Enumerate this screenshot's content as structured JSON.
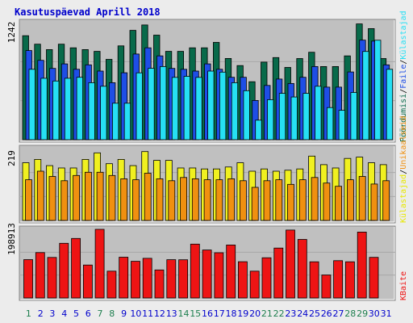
{
  "title": "Kasutuspäevad Aprill 2018",
  "colors": {
    "background": "#ececec",
    "panel": "#c0c0c0",
    "grid": "#a8a8a8",
    "title": "#0000cc",
    "page_views_bar": "#086a4a",
    "files_bar": "#1e4ee6",
    "visits_bar": "#26e0f4",
    "hits_bar": "#f0f020",
    "unique_bar": "#f09010",
    "kbytes_bar": "#ee1414",
    "weekend_label": "#1e7f4f",
    "weekday_label": "#0000cc"
  },
  "chart_data": [
    {
      "type": "bar",
      "name": "top",
      "ymax_label": "1242",
      "ylim": [
        0,
        1242
      ],
      "series": [
        {
          "name": "Pöördumisi",
          "color": "#086a4a",
          "values": [
            1103,
            1013,
            956,
            1013,
            975,
            956,
            937,
            852,
            995,
            1160,
            1217,
            1109,
            937,
            937,
            975,
            975,
            1032,
            862,
            786,
            615,
            823,
            871,
            767,
            861,
            928,
            776,
            776,
            889,
            1228,
            1179,
            861
          ]
        },
        {
          "name": "Faile",
          "color": "#1e4ee6",
          "values": [
            946,
            842,
            756,
            804,
            747,
            794,
            728,
            605,
            710,
            909,
            975,
            889,
            756,
            747,
            728,
            804,
            747,
            662,
            662,
            416,
            576,
            643,
            596,
            662,
            776,
            558,
            558,
            719,
            1056,
            1046,
            794
          ]
        },
        {
          "name": "Külastajad",
          "color": "#26e0f4",
          "values": [
            747,
            652,
            623,
            652,
            662,
            605,
            567,
            387,
            387,
            709,
            757,
            776,
            661,
            672,
            661,
            728,
            717,
            605,
            520,
            207,
            425,
            492,
            453,
            492,
            567,
            341,
            312,
            501,
            936,
            1055,
            747
          ]
        }
      ]
    },
    {
      "type": "bar",
      "name": "middle",
      "ymax_label": "219",
      "ylim": [
        0,
        219
      ],
      "series": [
        {
          "name": "Külastajad",
          "color": "#f0f020",
          "values": [
            176,
            186,
            167,
            160,
            160,
            186,
            206,
            173,
            186,
            167,
            210,
            183,
            183,
            160,
            160,
            157,
            157,
            163,
            176,
            150,
            157,
            150,
            153,
            157,
            196,
            170,
            160,
            189,
            193,
            176,
            170
          ]
        },
        {
          "name": "Unikaalseid",
          "color": "#f09010",
          "values": [
            124,
            150,
            134,
            121,
            137,
            147,
            147,
            137,
            127,
            124,
            144,
            127,
            121,
            131,
            127,
            124,
            124,
            127,
            121,
            101,
            121,
            124,
            110,
            124,
            131,
            114,
            104,
            124,
            134,
            111,
            121
          ]
        }
      ]
    },
    {
      "type": "bar",
      "name": "bottom",
      "ymax_label": "198913",
      "ylim": [
        0,
        198913
      ],
      "series": [
        {
          "name": "KBaite",
          "color": "#ee1414",
          "values": [
            111230,
            131630,
            117430,
            158340,
            172450,
            95400,
            198900,
            77580,
            118150,
            106220,
            114970,
            81240,
            110880,
            110750,
            156030,
            138910,
            131140,
            153480,
            105040,
            77580,
            116500,
            144660,
            196910,
            169550,
            104740,
            66580,
            108180,
            104740,
            190870,
            117800,
            0
          ]
        }
      ]
    }
  ],
  "legend": {
    "top": [
      {
        "text": "Pöördumisi",
        "color": "#086a4a"
      },
      {
        "text": "Faile",
        "color": "#1e4ee6"
      },
      {
        "text": "Külastajad",
        "color": "#26e0f4"
      }
    ],
    "middle": [
      {
        "text": "Külastajad",
        "color": "#e8e800"
      },
      {
        "text": "Unikaalseid",
        "color": "#f09010"
      }
    ],
    "bottom": [
      {
        "text": "KBaite",
        "color": "#ee1414"
      }
    ]
  },
  "x_labels": [
    "1",
    "2",
    "3",
    "4",
    "5",
    "6",
    "7",
    "8",
    "9",
    "10",
    "11",
    "12",
    "13",
    "14",
    "15",
    "16",
    "17",
    "18",
    "19",
    "20",
    "21",
    "22",
    "23",
    "24",
    "25",
    "26",
    "27",
    "28",
    "29",
    "30",
    "31"
  ],
  "weekend_days": [
    1,
    7,
    8,
    14,
    15,
    21,
    22,
    28,
    29
  ]
}
